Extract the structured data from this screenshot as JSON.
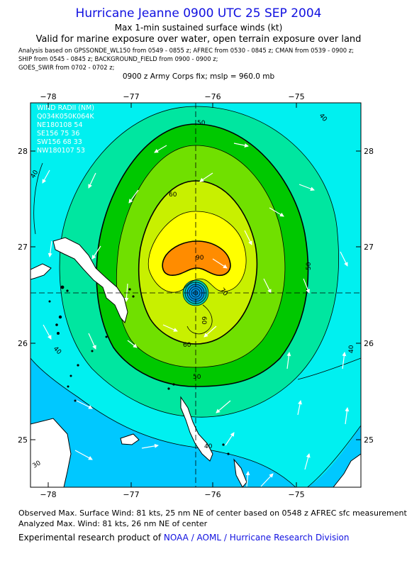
{
  "header": {
    "title": "Hurricane Jeanne 0900 UTC 25 SEP 2004",
    "subtitle1": "Max 1-min sustained surface winds (kt)",
    "subtitle2": "Valid for marine exposure over water, open terrain exposure over land",
    "analysis_lines": [
      "Analysis based on  GPSSONDE_WL150 from 0549 - 0855 z;  AFREC from 0530 - 0845 z;  CMAN from 0539 - 0900 z;",
      "SHIP from 0545 - 0845 z;  BACKGROUND_FIELD from 0900 - 0900 z;",
      "GOES_SWIR from 0702 - 0702 z;"
    ],
    "fix_line": "0900 z Army Corps fix; mslp = 960.0 mb"
  },
  "map": {
    "lon_labels": [
      "−78",
      "−77",
      "−76",
      "−75"
    ],
    "lat_labels": [
      "28",
      "27",
      "26",
      "25"
    ],
    "wind_radii": {
      "title": "WIND RADII (NM)",
      "header": "Q034K050K064K",
      "rows": [
        "NE180108 54",
        "SE156 75 36",
        "SW156 68 33",
        "NW180107 53"
      ]
    },
    "contour_labels": [
      "50",
      "40",
      "60",
      "50",
      "40",
      "90",
      "70",
      "60",
      "60",
      "50",
      "40",
      "40",
      "40",
      "30"
    ],
    "colors": {
      "band30": "#00c8ff",
      "band40": "#00f0f0",
      "band50": "#00e6a0",
      "band60": "#00c800",
      "band65": "#70e000",
      "band70": "#c8f000",
      "band80": "#ffff00",
      "band90": "#ff8c00",
      "land": "#ffffff"
    }
  },
  "footer": {
    "observed": "Observed Max. Surface Wind: 81 kts, 25 nm NE of center based on 0548 z AFREC sfc measurement",
    "analyzed": "Analyzed Max. Wind: 81 kts, 26 nm NE of center",
    "credit_prefix": "Experimental research product of ",
    "credit_org": "NOAA / AOML / Hurricane Research Division"
  }
}
